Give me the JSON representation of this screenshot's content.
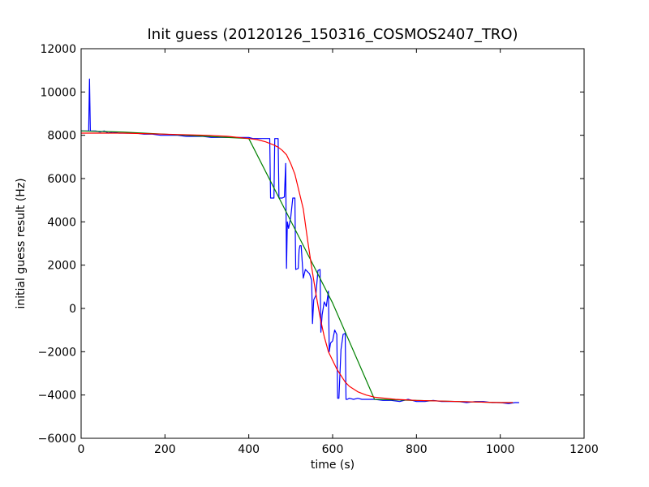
{
  "chart_data": {
    "type": "line",
    "title": "Init guess (20120126_150316_COSMOS2407_TRO)",
    "xlabel": "time (s)",
    "ylabel": "initial guess result (Hz)",
    "xlim": [
      0,
      1200
    ],
    "ylim": [
      -6000,
      12000
    ],
    "xticks": [
      0,
      200,
      400,
      600,
      800,
      1000,
      1200
    ],
    "yticks": [
      -6000,
      -4000,
      -2000,
      0,
      2000,
      4000,
      6000,
      8000,
      10000,
      12000
    ],
    "grid": false,
    "legend": "none",
    "series": [
      {
        "color": "#0000ff",
        "x": [
          0,
          15,
          18,
          20,
          22,
          25,
          35,
          45,
          55,
          65,
          75,
          90,
          110,
          130,
          150,
          170,
          190,
          210,
          230,
          250,
          270,
          290,
          310,
          330,
          350,
          370,
          390,
          400,
          410,
          420,
          430,
          440,
          450,
          452,
          460,
          462,
          470,
          472,
          480,
          485,
          488,
          490,
          492,
          495,
          500,
          505,
          510,
          512,
          518,
          520,
          522,
          525,
          530,
          535,
          540,
          545,
          550,
          552,
          555,
          560,
          565,
          570,
          572,
          575,
          580,
          585,
          590,
          592,
          595,
          600,
          605,
          610,
          612,
          615,
          620,
          625,
          630,
          632,
          635,
          640,
          650,
          660,
          670,
          680,
          700,
          720,
          740,
          760,
          780,
          800,
          820,
          840,
          860,
          880,
          900,
          920,
          940,
          960,
          980,
          1000,
          1020,
          1035,
          1045
        ],
        "y": [
          8200,
          8200,
          8200,
          10600,
          8200,
          8200,
          8200,
          8150,
          8200,
          8100,
          8150,
          8100,
          8100,
          8100,
          8050,
          8050,
          8000,
          8000,
          8000,
          7950,
          7950,
          7950,
          7900,
          7900,
          7900,
          7900,
          7900,
          7900,
          7850,
          7850,
          7850,
          7850,
          7850,
          5100,
          5100,
          7850,
          7850,
          5100,
          5100,
          5150,
          6700,
          1850,
          4000,
          3700,
          4200,
          5100,
          5100,
          1800,
          1850,
          2700,
          2900,
          2900,
          1400,
          1800,
          1700,
          1600,
          1300,
          -700,
          400,
          600,
          1750,
          1800,
          -1100,
          -300,
          300,
          100,
          800,
          -2000,
          -1600,
          -1500,
          -1000,
          -1200,
          -4150,
          -4150,
          -1900,
          -1200,
          -1150,
          -4200,
          -4200,
          -4150,
          -4200,
          -4150,
          -4200,
          -4200,
          -4200,
          -4250,
          -4250,
          -4300,
          -4200,
          -4300,
          -4300,
          -4250,
          -4300,
          -4300,
          -4300,
          -4350,
          -4300,
          -4300,
          -4350,
          -4350,
          -4400,
          -4350,
          -4350
        ]
      },
      {
        "color": "#008000",
        "x": [
          0,
          100,
          200,
          300,
          400,
          500,
          600,
          700,
          800,
          900,
          1000,
          1030
        ],
        "y": [
          8200,
          8150,
          8050,
          7950,
          7850,
          4050,
          250,
          -4200,
          -4250,
          -4300,
          -4350,
          -4350
        ]
      },
      {
        "color": "#ff0000",
        "x": [
          0,
          100,
          200,
          300,
          350,
          400,
          420,
          440,
          460,
          470,
          480,
          490,
          500,
          510,
          520,
          530,
          540,
          550,
          560,
          570,
          580,
          590,
          600,
          610,
          620,
          630,
          640,
          660,
          680,
          700,
          750,
          800,
          900,
          1000,
          1030
        ],
        "y": [
          8100,
          8100,
          8050,
          8000,
          7950,
          7850,
          7800,
          7700,
          7550,
          7450,
          7300,
          7100,
          6700,
          6200,
          5400,
          4600,
          3200,
          1900,
          700,
          -400,
          -1300,
          -2000,
          -2400,
          -2800,
          -3100,
          -3400,
          -3600,
          -3850,
          -4000,
          -4100,
          -4200,
          -4250,
          -4300,
          -4350,
          -4350
        ]
      }
    ]
  }
}
